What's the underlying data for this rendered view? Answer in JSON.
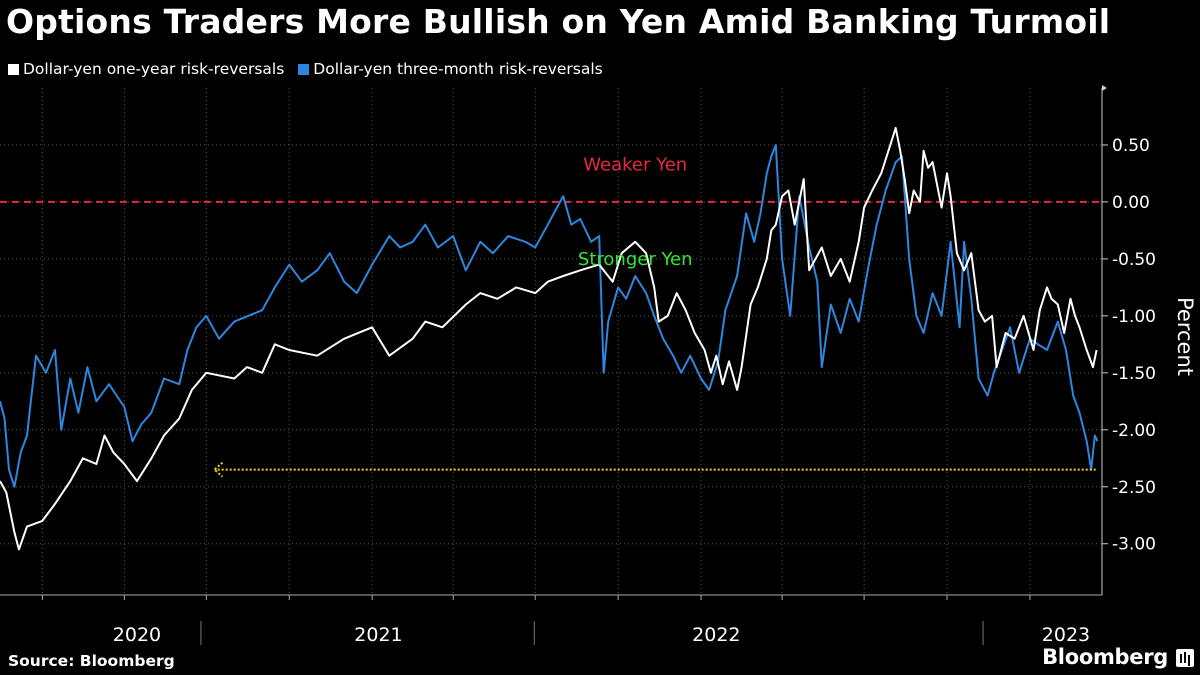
{
  "title": "Options Traders More Bullish on Yen Amid Banking Turmoil",
  "source": "Source: Bloomberg",
  "brand": "Bloomberg",
  "colors": {
    "background": "#000000",
    "one_year": "#ffffff",
    "three_month": "#2e86de",
    "zero_line": "#e8293a",
    "weaker_label": "#e8293a",
    "stronger_label": "#33e633",
    "arrow": "#f2d21b",
    "grid": "#555555"
  },
  "chart_data": {
    "type": "line",
    "ylabel": "Percent",
    "ylim": [
      -3.45,
      1.0
    ],
    "yticks": [
      0.5,
      0.0,
      -0.5,
      -1.0,
      -1.5,
      -2.0,
      -2.5,
      -3.0
    ],
    "ytick_labels": [
      "0.50",
      "0.00",
      "-0.50",
      "-1.00",
      "-1.50",
      "-2.00",
      "-2.50",
      "-3.00"
    ],
    "xlim": [
      "2019-11-15",
      "2023-03-22"
    ],
    "year_labels": [
      {
        "label": "2020",
        "center": "2020-04-15"
      },
      {
        "label": "2021",
        "center": "2021-01-08"
      },
      {
        "label": "2022",
        "center": "2022-01-18"
      },
      {
        "label": "2023",
        "center": "2023-02-10"
      }
    ],
    "year_separators": [
      "2020-06-25",
      "2021-06-30",
      "2022-11-10"
    ],
    "annotations": [
      {
        "text": "Weaker Yen",
        "x": "2021-10-20",
        "y": 0.33,
        "color_key": "weaker_label"
      },
      {
        "text": "Stronger Yen",
        "x": "2021-10-20",
        "y": -0.5,
        "color_key": "stronger_label"
      }
    ],
    "reference_line": {
      "y": 0.0,
      "style": "dashed"
    },
    "arrow": {
      "y": -2.35,
      "from": "2023-03-15",
      "to": "2020-07-10"
    },
    "series": [
      {
        "name": "Dollar-yen one-year risk-reversals",
        "color_key": "one_year",
        "points": [
          [
            "2019-11-15",
            -2.45
          ],
          [
            "2019-11-22",
            -2.55
          ],
          [
            "2019-12-01",
            -2.9
          ],
          [
            "2019-12-06",
            -3.05
          ],
          [
            "2019-12-15",
            -2.85
          ],
          [
            "2020-01-01",
            -2.8
          ],
          [
            "2020-01-15",
            -2.65
          ],
          [
            "2020-02-01",
            -2.45
          ],
          [
            "2020-02-15",
            -2.25
          ],
          [
            "2020-03-01",
            -2.3
          ],
          [
            "2020-03-10",
            -2.05
          ],
          [
            "2020-03-20",
            -2.2
          ],
          [
            "2020-04-01",
            -2.3
          ],
          [
            "2020-04-15",
            -2.45
          ],
          [
            "2020-05-01",
            -2.25
          ],
          [
            "2020-05-15",
            -2.05
          ],
          [
            "2020-06-01",
            -1.9
          ],
          [
            "2020-06-15",
            -1.65
          ],
          [
            "2020-07-01",
            -1.5
          ],
          [
            "2020-08-01",
            -1.55
          ],
          [
            "2020-08-15",
            -1.45
          ],
          [
            "2020-09-01",
            -1.5
          ],
          [
            "2020-09-15",
            -1.25
          ],
          [
            "2020-10-01",
            -1.3
          ],
          [
            "2020-11-01",
            -1.35
          ],
          [
            "2020-12-01",
            -1.2
          ],
          [
            "2021-01-01",
            -1.1
          ],
          [
            "2021-01-20",
            -1.35
          ],
          [
            "2021-02-15",
            -1.2
          ],
          [
            "2021-03-01",
            -1.05
          ],
          [
            "2021-03-20",
            -1.1
          ],
          [
            "2021-04-15",
            -0.9
          ],
          [
            "2021-05-01",
            -0.8
          ],
          [
            "2021-05-20",
            -0.85
          ],
          [
            "2021-06-10",
            -0.75
          ],
          [
            "2021-07-01",
            -0.8
          ],
          [
            "2021-07-15",
            -0.7
          ],
          [
            "2021-08-01",
            -0.65
          ],
          [
            "2021-08-20",
            -0.6
          ],
          [
            "2021-09-10",
            -0.55
          ],
          [
            "2021-09-25",
            -0.7
          ],
          [
            "2021-10-05",
            -0.45
          ],
          [
            "2021-10-20",
            -0.35
          ],
          [
            "2021-11-01",
            -0.45
          ],
          [
            "2021-11-10",
            -0.75
          ],
          [
            "2021-11-15",
            -1.05
          ],
          [
            "2021-11-25",
            -1.0
          ],
          [
            "2021-12-05",
            -0.8
          ],
          [
            "2021-12-15",
            -0.95
          ],
          [
            "2021-12-25",
            -1.15
          ],
          [
            "2022-01-05",
            -1.3
          ],
          [
            "2022-01-12",
            -1.5
          ],
          [
            "2022-01-18",
            -1.35
          ],
          [
            "2022-01-25",
            -1.6
          ],
          [
            "2022-02-01",
            -1.4
          ],
          [
            "2022-02-10",
            -1.65
          ],
          [
            "2022-02-15",
            -1.45
          ],
          [
            "2022-02-25",
            -0.9
          ],
          [
            "2022-03-05",
            -0.75
          ],
          [
            "2022-03-15",
            -0.5
          ],
          [
            "2022-03-20",
            -0.25
          ],
          [
            "2022-03-25",
            -0.2
          ],
          [
            "2022-04-01",
            0.05
          ],
          [
            "2022-04-08",
            0.1
          ],
          [
            "2022-04-15",
            -0.2
          ],
          [
            "2022-04-25",
            0.2
          ],
          [
            "2022-05-01",
            -0.6
          ],
          [
            "2022-05-15",
            -0.4
          ],
          [
            "2022-05-25",
            -0.65
          ],
          [
            "2022-06-05",
            -0.5
          ],
          [
            "2022-06-15",
            -0.7
          ],
          [
            "2022-06-25",
            -0.35
          ],
          [
            "2022-07-01",
            -0.05
          ],
          [
            "2022-07-10",
            0.1
          ],
          [
            "2022-07-20",
            0.25
          ],
          [
            "2022-08-01",
            0.55
          ],
          [
            "2022-08-05",
            0.65
          ],
          [
            "2022-08-10",
            0.45
          ],
          [
            "2022-08-15",
            0.2
          ],
          [
            "2022-08-20",
            -0.1
          ],
          [
            "2022-08-25",
            0.1
          ],
          [
            "2022-09-01",
            0.0
          ],
          [
            "2022-09-05",
            0.45
          ],
          [
            "2022-09-10",
            0.3
          ],
          [
            "2022-09-15",
            0.35
          ],
          [
            "2022-09-25",
            -0.05
          ],
          [
            "2022-10-01",
            0.25
          ],
          [
            "2022-10-05",
            0.05
          ],
          [
            "2022-10-12",
            -0.45
          ],
          [
            "2022-10-20",
            -0.6
          ],
          [
            "2022-10-28",
            -0.45
          ],
          [
            "2022-11-05",
            -0.95
          ],
          [
            "2022-11-12",
            -1.05
          ],
          [
            "2022-11-20",
            -1.0
          ],
          [
            "2022-11-25",
            -1.45
          ],
          [
            "2022-12-05",
            -1.15
          ],
          [
            "2022-12-15",
            -1.2
          ],
          [
            "2022-12-25",
            -1.0
          ],
          [
            "2023-01-05",
            -1.3
          ],
          [
            "2023-01-12",
            -0.95
          ],
          [
            "2023-01-20",
            -0.75
          ],
          [
            "2023-01-25",
            -0.85
          ],
          [
            "2023-02-01",
            -0.9
          ],
          [
            "2023-02-08",
            -1.15
          ],
          [
            "2023-02-15",
            -0.85
          ],
          [
            "2023-02-20",
            -1.0
          ],
          [
            "2023-02-25",
            -1.1
          ],
          [
            "2023-03-05",
            -1.3
          ],
          [
            "2023-03-12",
            -1.45
          ],
          [
            "2023-03-16",
            -1.3
          ]
        ]
      },
      {
        "name": "Dollar-yen three-month risk-reversals",
        "color_key": "three_month",
        "points": [
          [
            "2019-11-15",
            -1.75
          ],
          [
            "2019-11-20",
            -1.9
          ],
          [
            "2019-11-25",
            -2.35
          ],
          [
            "2019-12-01",
            -2.5
          ],
          [
            "2019-12-08",
            -2.2
          ],
          [
            "2019-12-15",
            -2.05
          ],
          [
            "2019-12-25",
            -1.35
          ],
          [
            "2020-01-05",
            -1.5
          ],
          [
            "2020-01-15",
            -1.3
          ],
          [
            "2020-01-22",
            -2.0
          ],
          [
            "2020-02-01",
            -1.55
          ],
          [
            "2020-02-10",
            -1.85
          ],
          [
            "2020-02-20",
            -1.45
          ],
          [
            "2020-03-01",
            -1.75
          ],
          [
            "2020-03-15",
            -1.6
          ],
          [
            "2020-04-01",
            -1.8
          ],
          [
            "2020-04-10",
            -2.1
          ],
          [
            "2020-04-20",
            -1.95
          ],
          [
            "2020-05-01",
            -1.85
          ],
          [
            "2020-05-15",
            -1.55
          ],
          [
            "2020-06-01",
            -1.6
          ],
          [
            "2020-06-10",
            -1.3
          ],
          [
            "2020-06-20",
            -1.1
          ],
          [
            "2020-07-01",
            -1.0
          ],
          [
            "2020-07-15",
            -1.2
          ],
          [
            "2020-08-01",
            -1.05
          ],
          [
            "2020-09-01",
            -0.95
          ],
          [
            "2020-09-15",
            -0.75
          ],
          [
            "2020-10-01",
            -0.55
          ],
          [
            "2020-10-15",
            -0.7
          ],
          [
            "2020-11-01",
            -0.6
          ],
          [
            "2020-11-15",
            -0.45
          ],
          [
            "2020-12-01",
            -0.7
          ],
          [
            "2020-12-15",
            -0.8
          ],
          [
            "2021-01-01",
            -0.55
          ],
          [
            "2021-01-20",
            -0.3
          ],
          [
            "2021-02-01",
            -0.4
          ],
          [
            "2021-02-15",
            -0.35
          ],
          [
            "2021-03-01",
            -0.2
          ],
          [
            "2021-03-15",
            -0.4
          ],
          [
            "2021-04-01",
            -0.3
          ],
          [
            "2021-04-15",
            -0.6
          ],
          [
            "2021-05-01",
            -0.35
          ],
          [
            "2021-05-15",
            -0.45
          ],
          [
            "2021-06-01",
            -0.3
          ],
          [
            "2021-06-20",
            -0.35
          ],
          [
            "2021-07-01",
            -0.4
          ],
          [
            "2021-07-15",
            -0.2
          ],
          [
            "2021-07-25",
            -0.05
          ],
          [
            "2021-08-01",
            0.05
          ],
          [
            "2021-08-10",
            -0.2
          ],
          [
            "2021-08-20",
            -0.15
          ],
          [
            "2021-09-01",
            -0.35
          ],
          [
            "2021-09-10",
            -0.3
          ],
          [
            "2021-09-15",
            -1.5
          ],
          [
            "2021-09-20",
            -1.05
          ],
          [
            "2021-10-01",
            -0.75
          ],
          [
            "2021-10-10",
            -0.85
          ],
          [
            "2021-10-20",
            -0.65
          ],
          [
            "2021-11-01",
            -0.8
          ],
          [
            "2021-11-10",
            -1.0
          ],
          [
            "2021-11-20",
            -1.2
          ],
          [
            "2021-12-01",
            -1.35
          ],
          [
            "2021-12-10",
            -1.5
          ],
          [
            "2021-12-20",
            -1.35
          ],
          [
            "2022-01-01",
            -1.55
          ],
          [
            "2022-01-10",
            -1.65
          ],
          [
            "2022-01-20",
            -1.4
          ],
          [
            "2022-01-28",
            -0.95
          ],
          [
            "2022-02-10",
            -0.65
          ],
          [
            "2022-02-20",
            -0.1
          ],
          [
            "2022-03-01",
            -0.35
          ],
          [
            "2022-03-08",
            -0.1
          ],
          [
            "2022-03-15",
            0.25
          ],
          [
            "2022-03-20",
            0.4
          ],
          [
            "2022-03-25",
            0.5
          ],
          [
            "2022-04-01",
            -0.5
          ],
          [
            "2022-04-10",
            -1.0
          ],
          [
            "2022-04-20",
            0.05
          ],
          [
            "2022-05-01",
            -0.4
          ],
          [
            "2022-05-10",
            -0.7
          ],
          [
            "2022-05-15",
            -1.45
          ],
          [
            "2022-05-25",
            -0.9
          ],
          [
            "2022-06-05",
            -1.15
          ],
          [
            "2022-06-15",
            -0.85
          ],
          [
            "2022-06-25",
            -1.05
          ],
          [
            "2022-07-05",
            -0.6
          ],
          [
            "2022-07-15",
            -0.2
          ],
          [
            "2022-07-25",
            0.1
          ],
          [
            "2022-08-05",
            0.35
          ],
          [
            "2022-08-12",
            0.4
          ],
          [
            "2022-08-20",
            -0.5
          ],
          [
            "2022-08-28",
            -1.0
          ],
          [
            "2022-09-05",
            -1.15
          ],
          [
            "2022-09-15",
            -0.8
          ],
          [
            "2022-09-25",
            -1.0
          ],
          [
            "2022-10-05",
            -0.35
          ],
          [
            "2022-10-15",
            -1.1
          ],
          [
            "2022-10-20",
            -0.35
          ],
          [
            "2022-10-28",
            -0.85
          ],
          [
            "2022-11-05",
            -1.55
          ],
          [
            "2022-11-15",
            -1.7
          ],
          [
            "2022-11-22",
            -1.5
          ],
          [
            "2022-12-01",
            -1.3
          ],
          [
            "2022-12-10",
            -1.1
          ],
          [
            "2022-12-20",
            -1.5
          ],
          [
            "2023-01-01",
            -1.2
          ],
          [
            "2023-01-10",
            -1.25
          ],
          [
            "2023-01-20",
            -1.3
          ],
          [
            "2023-02-01",
            -1.05
          ],
          [
            "2023-02-10",
            -1.3
          ],
          [
            "2023-02-18",
            -1.7
          ],
          [
            "2023-02-25",
            -1.85
          ],
          [
            "2023-03-05",
            -2.1
          ],
          [
            "2023-03-10",
            -2.35
          ],
          [
            "2023-03-14",
            -2.05
          ],
          [
            "2023-03-17",
            -2.1
          ]
        ]
      }
    ]
  }
}
